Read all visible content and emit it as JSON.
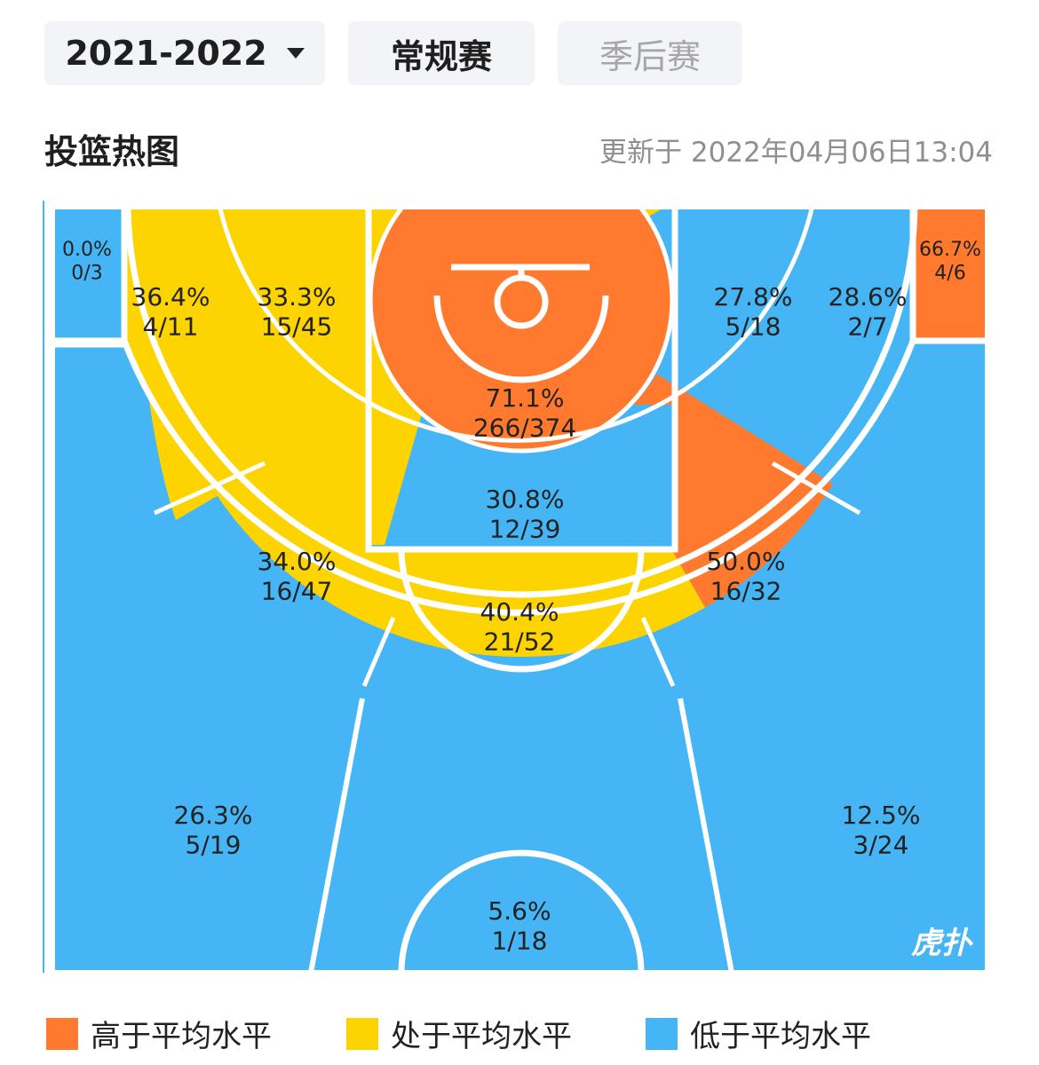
{
  "filters": {
    "season": "2021-2022",
    "tabs": [
      {
        "label": "常规赛",
        "active": true
      },
      {
        "label": "季后赛",
        "active": false
      }
    ]
  },
  "section": {
    "title": "投篮热图",
    "update_time": "更新于 2022年04月06日13:04"
  },
  "colors": {
    "above": "#ff7a2e",
    "average": "#fdd400",
    "below": "#45b5f5",
    "court_line": "#ffffff"
  },
  "zones": [
    {
      "id": "left-corner-three",
      "pct": "0.0%",
      "made": "0/3",
      "level": "below"
    },
    {
      "id": "left-mid-baseline",
      "pct": "36.4%",
      "made": "4/11",
      "level": "average"
    },
    {
      "id": "left-short-baseline",
      "pct": "33.3%",
      "made": "15/45",
      "level": "average"
    },
    {
      "id": "restricted-area",
      "pct": "71.1%",
      "made": "266/374",
      "level": "above"
    },
    {
      "id": "right-short-baseline",
      "pct": "27.8%",
      "made": "5/18",
      "level": "below"
    },
    {
      "id": "right-mid-baseline",
      "pct": "28.6%",
      "made": "2/7",
      "level": "below"
    },
    {
      "id": "right-corner-three",
      "pct": "66.7%",
      "made": "4/6",
      "level": "above"
    },
    {
      "id": "paint-non-ra",
      "pct": "30.8%",
      "made": "12/39",
      "level": "below"
    },
    {
      "id": "left-wing-mid",
      "pct": "34.0%",
      "made": "16/47",
      "level": "average"
    },
    {
      "id": "top-key-mid",
      "pct": "40.4%",
      "made": "21/52",
      "level": "average"
    },
    {
      "id": "right-wing-mid",
      "pct": "50.0%",
      "made": "16/32",
      "level": "above"
    },
    {
      "id": "left-wing-three",
      "pct": "26.3%",
      "made": "5/19",
      "level": "below"
    },
    {
      "id": "top-three",
      "pct": "5.6%",
      "made": "1/18",
      "level": "below"
    },
    {
      "id": "right-wing-three",
      "pct": "12.5%",
      "made": "3/24",
      "level": "below"
    }
  ],
  "watermark": "虎扑",
  "legend": [
    {
      "label": "高于平均水平",
      "level": "above"
    },
    {
      "label": "处于平均水平",
      "level": "average"
    },
    {
      "label": "低于平均水平",
      "level": "below"
    }
  ]
}
